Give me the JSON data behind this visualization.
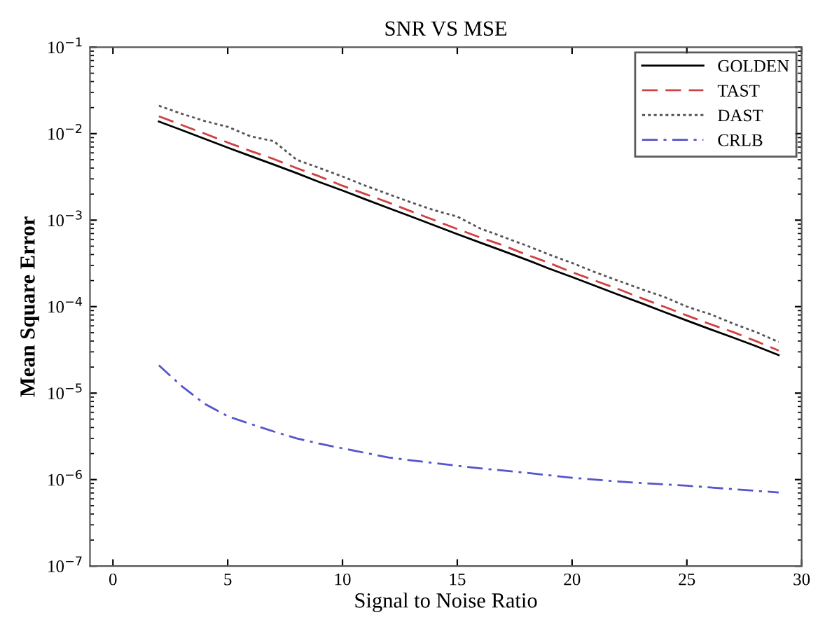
{
  "chart_data": {
    "type": "line",
    "title": "SNR VS MSE",
    "xlabel": "Signal to Noise Ratio",
    "ylabel": "Mean Square Error",
    "x": [
      2,
      3,
      4,
      5,
      6,
      7,
      8,
      9,
      10,
      11,
      12,
      13,
      14,
      15,
      16,
      17,
      18,
      19,
      20,
      21,
      22,
      23,
      24,
      25,
      26,
      27,
      28,
      29
    ],
    "series": [
      {
        "name": "GOLDEN",
        "color": "#000000",
        "line_style": "solid",
        "values": [
          0.0138,
          0.011,
          0.0087,
          0.0069,
          0.0055,
          0.0044,
          0.0035,
          0.00275,
          0.0022,
          0.00174,
          0.00138,
          0.0011,
          0.00087,
          0.00069,
          0.00055,
          0.00044,
          0.00035,
          0.000275,
          0.00022,
          0.000174,
          0.000138,
          0.00011,
          8.7e-05,
          6.9e-05,
          5.5e-05,
          4.4e-05,
          3.5e-05,
          2.75e-05
        ]
      },
      {
        "name": "TAST",
        "color": "#d04040",
        "line_style": "dashed",
        "values": [
          0.0159,
          0.0126,
          0.01,
          0.0079,
          0.0063,
          0.0051,
          0.004,
          0.0032,
          0.0025,
          0.002,
          0.0016,
          0.00126,
          0.001,
          0.00079,
          0.00063,
          0.00051,
          0.0004,
          0.00032,
          0.00025,
          0.0002,
          0.00016,
          0.000126,
          0.0001,
          7.9e-05,
          6.3e-05,
          5.1e-05,
          4e-05,
          3.1e-05
        ]
      },
      {
        "name": "DAST",
        "color": "#555555",
        "line_style": "dotted",
        "values": [
          0.021,
          0.017,
          0.014,
          0.012,
          0.0093,
          0.0082,
          0.005,
          0.004,
          0.0032,
          0.0025,
          0.002,
          0.0016,
          0.0013,
          0.0011,
          0.0008,
          0.00064,
          0.00051,
          0.0004,
          0.00032,
          0.00025,
          0.0002,
          0.00016,
          0.00013,
          0.0001,
          8.2e-05,
          6.4e-05,
          5.1e-05,
          3.9e-05
        ]
      },
      {
        "name": "CRLB",
        "color": "#5555cc",
        "line_style": "dashdot",
        "x": [
          2,
          3,
          4,
          5,
          6,
          7,
          8,
          9,
          10,
          12,
          14,
          16,
          18,
          20,
          22,
          25,
          29
        ],
        "values": [
          2.1e-05,
          1.2e-05,
          7.5e-06,
          5.4e-06,
          4.4e-06,
          3.6e-06,
          3e-06,
          2.6e-06,
          2.3e-06,
          1.8e-06,
          1.55e-06,
          1.35e-06,
          1.2e-06,
          1.05e-06,
          9.5e-07,
          8.5e-07,
          7.1e-07
        ]
      }
    ],
    "log": "y",
    "xlim": [
      -1,
      30
    ],
    "ylim": [
      1e-07,
      0.1
    ],
    "xticks": [
      0,
      5,
      10,
      15,
      20,
      25,
      30
    ],
    "yticks": [
      {
        "value": 1e-07,
        "label": "10$^{−7}$"
      },
      {
        "value": 1e-06,
        "label": "10$^{−6}$"
      },
      {
        "value": 1e-05,
        "label": "10$^{−5}$"
      },
      {
        "value": 0.0001,
        "label": "10$^{−4}$"
      },
      {
        "value": 0.001,
        "label": "10$^{−3}$"
      },
      {
        "value": 0.01,
        "label": "10$^{−2}$"
      },
      {
        "value": 0.1,
        "label": "10$^{−1}$"
      }
    ],
    "legend": "top right",
    "grid": false
  }
}
